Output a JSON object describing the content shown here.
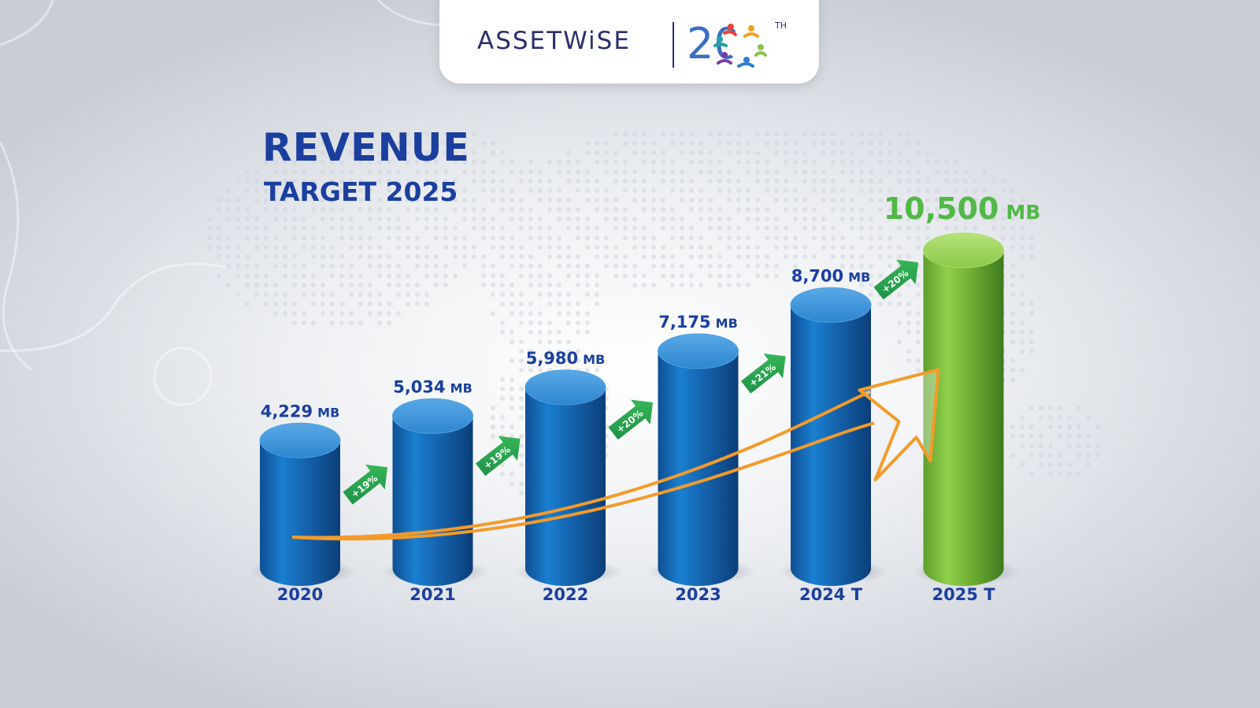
{
  "brand": {
    "name": "ASSETWiSE",
    "anniversary_number": "20",
    "anniversary_suffix": "TH"
  },
  "colors": {
    "title": "#1b3f9e",
    "actual_bar": "#1a73c2",
    "target_bar_highlight": "#7cc440",
    "highlight_label": "#52b848",
    "growth_arrow": "#1f9a4a",
    "trend_arrow": "#f29b2a"
  },
  "chart_data": {
    "type": "bar",
    "title": "REVENUE",
    "subtitle": "TARGET 2025",
    "xlabel": "",
    "ylabel": "",
    "unit": "MB",
    "categories": [
      "2020",
      "2021",
      "2022",
      "2023",
      "2024 T",
      "2025 T"
    ],
    "values": [
      4229,
      5034,
      5980,
      7175,
      8700,
      10500
    ],
    "value_labels": [
      "4,229",
      "5,034",
      "5,980",
      "7,175",
      "8,700",
      "10,500"
    ],
    "highlight_index": 5,
    "ylim": [
      0,
      10500
    ],
    "grid": false,
    "legend": "none",
    "growth_labels": [
      "+19%",
      "+19%",
      "+20%",
      "+21%",
      "+20%"
    ],
    "trend_arrow": true
  }
}
